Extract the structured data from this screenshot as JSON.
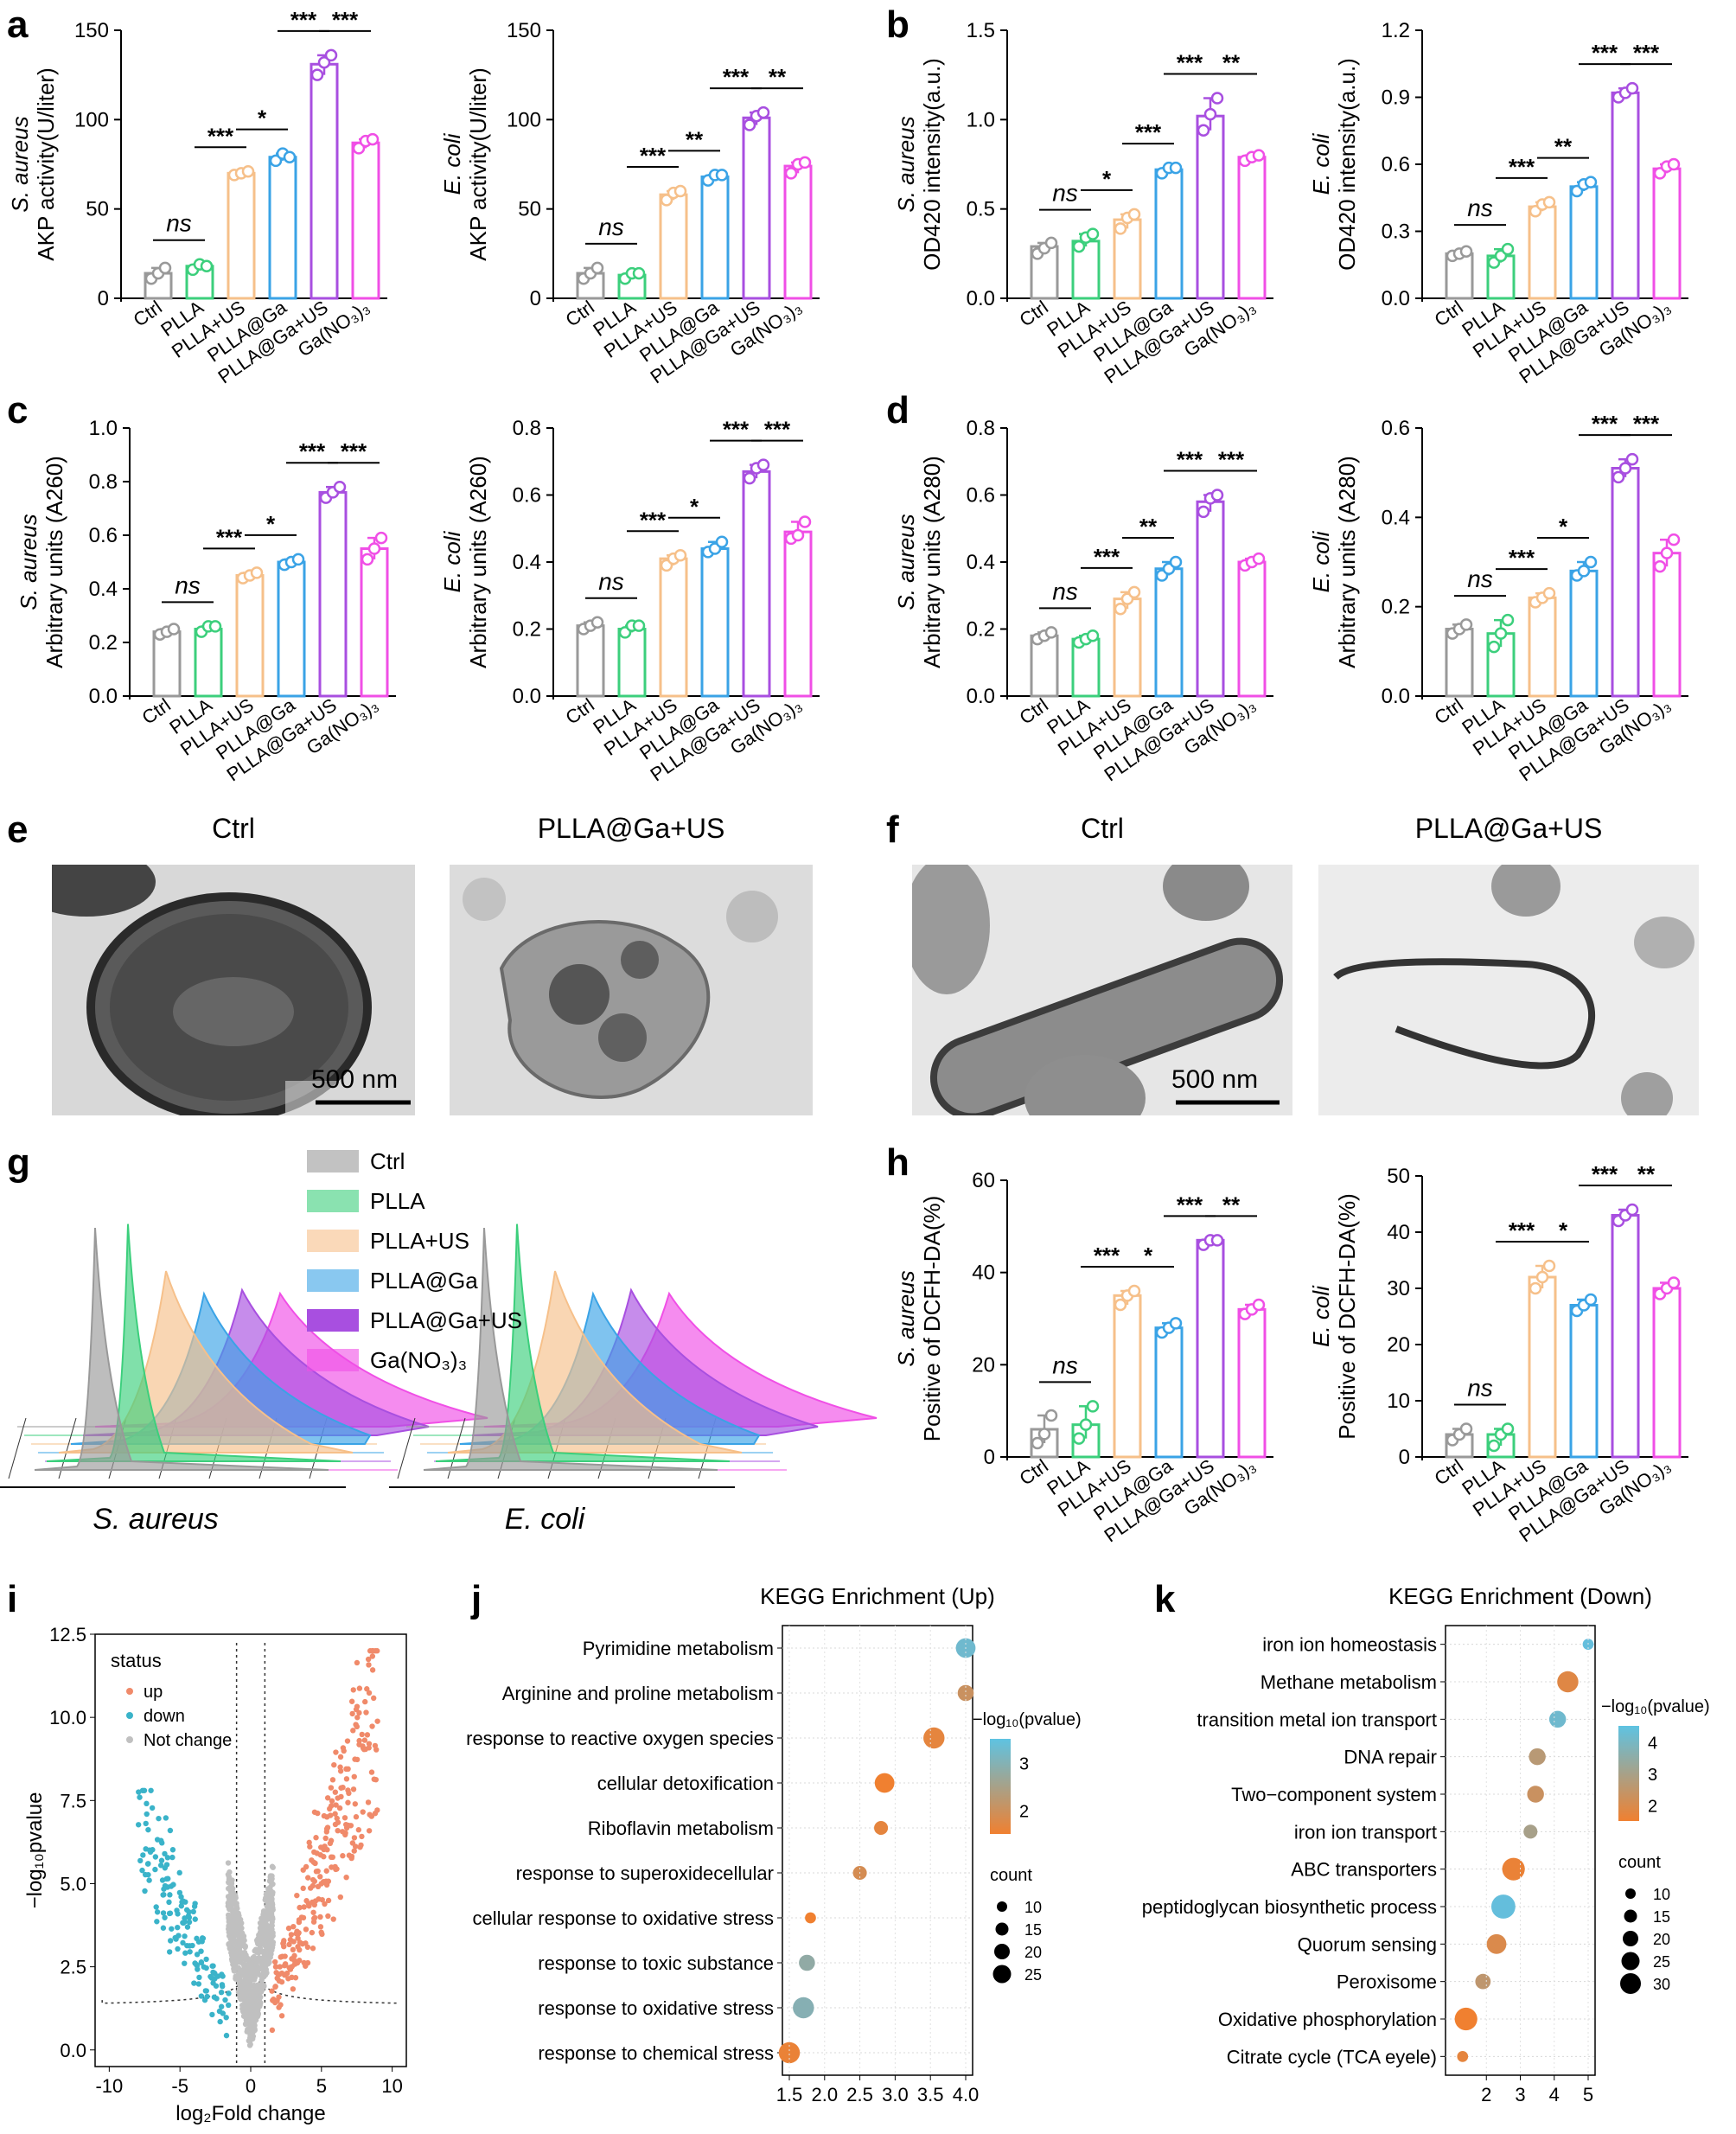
{
  "panel_labels": [
    "a",
    "b",
    "c",
    "d",
    "e",
    "f",
    "g",
    "h",
    "i",
    "j",
    "k"
  ],
  "colors": {
    "Ctrl": "#999999",
    "PLLA": "#3ccf7c",
    "PLLA+US": "#f6c08a",
    "PLLA@Ga": "#3aa3e6",
    "PLLA@Ga+US": "#a84fe0",
    "Ga(NO3)3": "#f04fe6",
    "up": "#f08a6a",
    "down": "#3ab3c9",
    "notchange": "#c0c0c0"
  },
  "groups": [
    "Ctrl",
    "PLLA",
    "PLLA+US",
    "PLLA@Ga",
    "PLLA@Ga+US",
    "Ga(NO₃)₃"
  ],
  "chart_data": [
    {
      "id": "a1",
      "type": "bar",
      "species": "S. aureus",
      "ylabel": "AKP activity(U/liter)",
      "ylim": [
        0,
        150
      ],
      "yticks": [
        0,
        50,
        100,
        150
      ],
      "values": [
        14,
        18,
        70,
        79,
        131,
        87
      ],
      "points": [
        [
          11,
          14,
          17
        ],
        [
          16,
          19,
          18
        ],
        [
          69,
          70,
          71
        ],
        [
          77,
          81,
          79
        ],
        [
          125,
          132,
          136
        ],
        [
          84,
          88,
          89
        ]
      ],
      "sig": [
        "ns",
        "***",
        "*",
        "***",
        "***"
      ]
    },
    {
      "id": "a2",
      "type": "bar",
      "species": "E. coli",
      "ylabel": "AKP activity(U/liter)",
      "ylim": [
        0,
        150
      ],
      "yticks": [
        0,
        50,
        100,
        150
      ],
      "values": [
        14,
        13,
        58,
        68,
        101,
        74
      ],
      "points": [
        [
          11,
          14,
          17
        ],
        [
          11,
          14,
          14
        ],
        [
          55,
          59,
          60
        ],
        [
          66,
          69,
          69
        ],
        [
          97,
          102,
          104
        ],
        [
          70,
          75,
          76
        ]
      ],
      "sig": [
        "ns",
        "***",
        "**",
        "***",
        "**"
      ]
    },
    {
      "id": "b1",
      "type": "bar",
      "species": "S. aureus",
      "ylabel": "OD420 intensity(a.u.)",
      "ylim": [
        0,
        1.5
      ],
      "yticks": [
        "0.0",
        "0.5",
        "1.0",
        "1.5"
      ],
      "values": [
        0.29,
        0.32,
        0.44,
        0.72,
        1.02,
        0.79
      ],
      "points": [
        [
          0.25,
          0.28,
          0.31
        ],
        [
          0.29,
          0.34,
          0.36
        ],
        [
          0.39,
          0.45,
          0.47
        ],
        [
          0.7,
          0.73,
          0.73
        ],
        [
          0.94,
          1.03,
          1.12
        ],
        [
          0.77,
          0.79,
          0.8
        ]
      ],
      "sig": [
        "ns",
        "*",
        "***",
        "***",
        "**"
      ]
    },
    {
      "id": "b2",
      "type": "bar",
      "species": "E. coli",
      "ylabel": "OD420 intensity(a.u.)",
      "ylim": [
        0,
        1.2
      ],
      "yticks": [
        "0.0",
        "0.3",
        "0.6",
        "0.9",
        "1.2"
      ],
      "values": [
        0.2,
        0.19,
        0.41,
        0.5,
        0.92,
        0.58
      ],
      "points": [
        [
          0.19,
          0.2,
          0.21
        ],
        [
          0.16,
          0.19,
          0.22
        ],
        [
          0.39,
          0.42,
          0.43
        ],
        [
          0.48,
          0.51,
          0.52
        ],
        [
          0.9,
          0.92,
          0.94
        ],
        [
          0.56,
          0.59,
          0.6
        ]
      ],
      "sig": [
        "ns",
        "***",
        "**",
        "***",
        "***"
      ]
    },
    {
      "id": "c1",
      "type": "bar",
      "species": "S. aureus",
      "ylabel": "Arbitrary units (A260)",
      "ylim": [
        0,
        1.0
      ],
      "yticks": [
        "0.0",
        "0.2",
        "0.4",
        "0.6",
        "0.8",
        "1.0"
      ],
      "values": [
        0.24,
        0.25,
        0.45,
        0.5,
        0.76,
        0.55
      ],
      "points": [
        [
          0.23,
          0.24,
          0.25
        ],
        [
          0.24,
          0.26,
          0.26
        ],
        [
          0.44,
          0.45,
          0.46
        ],
        [
          0.49,
          0.5,
          0.51
        ],
        [
          0.74,
          0.76,
          0.78
        ],
        [
          0.51,
          0.55,
          0.59
        ]
      ],
      "sig": [
        "ns",
        "***",
        "*",
        "***",
        "***"
      ]
    },
    {
      "id": "c2",
      "type": "bar",
      "species": "E. coli",
      "ylabel": "Arbitrary units (A260)",
      "ylim": [
        0,
        0.8
      ],
      "yticks": [
        "0.0",
        "0.2",
        "0.4",
        "0.6",
        "0.8"
      ],
      "values": [
        0.21,
        0.2,
        0.41,
        0.44,
        0.67,
        0.49
      ],
      "points": [
        [
          0.2,
          0.21,
          0.22
        ],
        [
          0.19,
          0.21,
          0.21
        ],
        [
          0.39,
          0.41,
          0.42
        ],
        [
          0.43,
          0.44,
          0.46
        ],
        [
          0.65,
          0.68,
          0.69
        ],
        [
          0.47,
          0.48,
          0.52
        ]
      ],
      "sig": [
        "ns",
        "***",
        "*",
        "***",
        "***"
      ]
    },
    {
      "id": "d1",
      "type": "bar",
      "species": "S. aureus",
      "ylabel": "Arbitrary units (A280)",
      "ylim": [
        0,
        0.8
      ],
      "yticks": [
        "0.0",
        "0.2",
        "0.4",
        "0.6",
        "0.8"
      ],
      "values": [
        0.18,
        0.17,
        0.29,
        0.38,
        0.58,
        0.4
      ],
      "points": [
        [
          0.17,
          0.18,
          0.19
        ],
        [
          0.16,
          0.17,
          0.18
        ],
        [
          0.26,
          0.29,
          0.31
        ],
        [
          0.36,
          0.38,
          0.4
        ],
        [
          0.55,
          0.59,
          0.6
        ],
        [
          0.39,
          0.4,
          0.41
        ]
      ],
      "sig": [
        "ns",
        "***",
        "**",
        "***",
        "***"
      ]
    },
    {
      "id": "d2",
      "type": "bar",
      "species": "E. coli",
      "ylabel": "Arbitrary units (A280)",
      "ylim": [
        0,
        0.6
      ],
      "yticks": [
        "0.0",
        "0.2",
        "0.4",
        "0.6"
      ],
      "values": [
        0.15,
        0.14,
        0.22,
        0.28,
        0.51,
        0.32
      ],
      "points": [
        [
          0.14,
          0.15,
          0.16
        ],
        [
          0.11,
          0.14,
          0.17
        ],
        [
          0.21,
          0.22,
          0.23
        ],
        [
          0.27,
          0.28,
          0.3
        ],
        [
          0.49,
          0.51,
          0.53
        ],
        [
          0.29,
          0.32,
          0.35
        ]
      ],
      "sig": [
        "ns",
        "***",
        "*",
        "***",
        "***"
      ]
    },
    {
      "id": "h1",
      "type": "bar",
      "species": "S. aureus",
      "ylabel": "Positive of DCFH-DA(%)",
      "ylim": [
        0,
        60
      ],
      "yticks": [
        0,
        20,
        40,
        60
      ],
      "values": [
        6,
        7,
        35,
        28,
        47,
        32
      ],
      "points": [
        [
          3,
          5,
          9
        ],
        [
          4,
          7,
          11
        ],
        [
          33,
          35,
          36
        ],
        [
          27,
          28,
          29
        ],
        [
          46,
          47,
          47
        ],
        [
          31,
          32,
          33
        ]
      ],
      "sig": [
        "ns",
        "***",
        "*",
        "***",
        "**"
      ]
    },
    {
      "id": "h2",
      "type": "bar",
      "species": "E. coli",
      "ylabel": "Positive of DCFH-DA(%)",
      "ylim": [
        0,
        50
      ],
      "yticks": [
        0,
        10,
        20,
        30,
        40,
        50
      ],
      "values": [
        4,
        4,
        32,
        27,
        43,
        30
      ],
      "points": [
        [
          3,
          4,
          5
        ],
        [
          2,
          4,
          5
        ],
        [
          30,
          32,
          34
        ],
        [
          26,
          27,
          28
        ],
        [
          42,
          43,
          44
        ],
        [
          29,
          30,
          31
        ]
      ],
      "sig": [
        "ns",
        "***",
        "*",
        "***",
        "**"
      ]
    },
    {
      "id": "g",
      "type": "area",
      "xlabels": [
        "S. aureus",
        "E. coli"
      ],
      "legend": [
        "Ctrl",
        "PLLA",
        "PLLA+US",
        "PLLA@Ga",
        "PLLA@Ga+US",
        "Ga(NO₃)₃"
      ],
      "peak_positions": [
        0.1,
        0.18,
        0.28,
        0.38,
        0.48,
        0.58
      ],
      "peak_heights": [
        1.0,
        0.98,
        0.75,
        0.62,
        0.6,
        0.55
      ]
    },
    {
      "id": "i",
      "type": "scatter",
      "title": "",
      "xlabel": "log₂Fold change",
      "ylabel": "−log₁₀pvalue",
      "xlim": [
        -11,
        11
      ],
      "ylim": [
        -0.5,
        12.5
      ],
      "xticks": [
        -10,
        -5,
        0,
        5,
        10
      ],
      "yticks": [
        "0.0",
        "2.5",
        "5.0",
        "7.5",
        "10.0",
        "12.5"
      ],
      "legend_title": "status",
      "legend": [
        "up",
        "down",
        "Not change"
      ]
    },
    {
      "id": "j",
      "type": "scatter",
      "title": "KEGG Enrichment (Up)",
      "categories": [
        "Pyrimidine metabolism",
        "Arginine and proline metabolism",
        "response to reactive oxygen species",
        "cellular detoxification",
        "Riboflavin metabolism",
        "response to superoxidecellular",
        "cellular response to oxidative stress",
        "response to toxic substance",
        "response to oxidative stress",
        "response to chemical stress"
      ],
      "x": [
        4.0,
        4.0,
        3.55,
        2.85,
        2.8,
        2.5,
        1.8,
        1.75,
        1.7,
        1.5
      ],
      "count": [
        20,
        15,
        22,
        20,
        12,
        12,
        8,
        15,
        22,
        22
      ],
      "neglogp": [
        3.6,
        2.0,
        1.5,
        1.3,
        1.5,
        1.8,
        1.2,
        3.0,
        3.2,
        1.4
      ],
      "xlim": [
        1.5,
        4.0
      ],
      "xticks": [
        "1.5",
        "2.0",
        "2.5",
        "3.0",
        "3.5",
        "4.0"
      ],
      "color_title": "−log₁₀(pvalue)",
      "color_ticks": [
        "2",
        "3"
      ],
      "size_title": "count",
      "size_ticks": [
        "10",
        "15",
        "20",
        "25"
      ]
    },
    {
      "id": "k",
      "type": "scatter",
      "title": "KEGG Enrichment (Down)",
      "categories": [
        "iron ion homeostasis",
        "Methane metabolism",
        "transition metal ion transport",
        "DNA repair",
        "Two−component system",
        "iron ion transport",
        "ABC transporters",
        "peptidoglycan biosynthetic process",
        "Quorum sensing",
        "Peroxisome",
        "Oxidative phosphorylation",
        "Citrate cycle (TCA eyele)"
      ],
      "x": [
        5.0,
        4.4,
        4.1,
        3.5,
        3.45,
        3.3,
        2.8,
        2.5,
        2.3,
        1.9,
        1.4,
        1.3
      ],
      "count": [
        8,
        22,
        16,
        16,
        16,
        12,
        24,
        26,
        20,
        14,
        24,
        8
      ],
      "neglogp": [
        4.2,
        1.6,
        3.6,
        2.3,
        2.0,
        2.6,
        1.4,
        4.0,
        1.7,
        2.2,
        1.3,
        1.5
      ],
      "xlim": [
        1,
        5
      ],
      "xticks": [
        "2",
        "3",
        "4",
        "5"
      ],
      "color_title": "−log₁₀(pvalue)",
      "color_ticks": [
        "2",
        "3",
        "4"
      ],
      "size_title": "count",
      "size_ticks": [
        "10",
        "15",
        "20",
        "25",
        "30"
      ]
    }
  ],
  "em": {
    "e_captions": [
      "Ctrl",
      "PLLA@Ga+US"
    ],
    "f_captions": [
      "Ctrl",
      "PLLA@Ga+US"
    ],
    "scale_bar": "500 nm"
  }
}
